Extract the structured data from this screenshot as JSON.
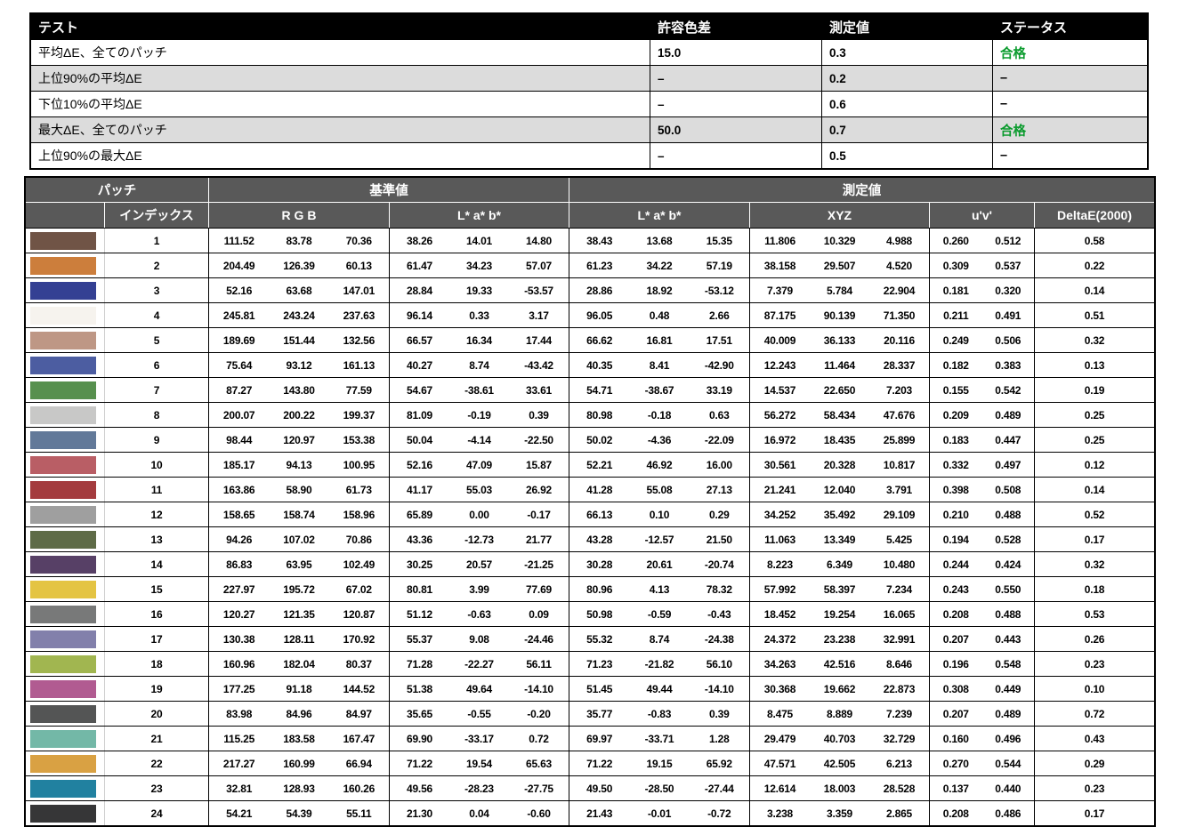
{
  "colors": {
    "pass_green": "#0a9b2d",
    "header_gray": "#595959",
    "alt_row_gray": "#dcdcdc",
    "table_border": "#000000"
  },
  "summary_table": {
    "columns": {
      "test": "テスト",
      "tolerance": "許容色差",
      "measured": "測定値",
      "status": "ステータス"
    },
    "rows": [
      {
        "test": "平均ΔE、全てのパッチ",
        "tolerance": "15.0",
        "measured": "0.3",
        "status": "合格"
      },
      {
        "test": "上位90%の平均ΔE",
        "tolerance": "–",
        "measured": "0.2",
        "status": "–"
      },
      {
        "test": "下位10%の平均ΔE",
        "tolerance": "–",
        "measured": "0.6",
        "status": "–"
      },
      {
        "test": "最大ΔE、全てのパッチ",
        "tolerance": "50.0",
        "measured": "0.7",
        "status": "合格"
      },
      {
        "test": "上位90%の最大ΔE",
        "tolerance": "–",
        "measured": "0.5",
        "status": "–"
      }
    ]
  },
  "patch_table": {
    "group_headers": {
      "patch": "パッチ",
      "reference": "基準値",
      "measured": "測定値"
    },
    "sub_headers": {
      "index": "インデックス",
      "rgb": "R G B",
      "lab_ref": "L* a* b*",
      "lab_meas": "L* a* b*",
      "xyz": "XYZ",
      "uv": "u'v'",
      "delta_e": "DeltaE(2000)"
    },
    "rows": [
      {
        "index": "1",
        "swatch": "#705446",
        "rgb": [
          "111.52",
          "83.78",
          "70.36"
        ],
        "lab_ref": [
          "38.26",
          "14.01",
          "14.80"
        ],
        "lab_meas": [
          "38.43",
          "13.68",
          "15.35"
        ],
        "xyz": [
          "11.806",
          "10.329",
          "4.988"
        ],
        "uv": [
          "0.260",
          "0.512"
        ],
        "delta_e": "0.58"
      },
      {
        "index": "2",
        "swatch": "#cc7e3c",
        "rgb": [
          "204.49",
          "126.39",
          "60.13"
        ],
        "lab_ref": [
          "61.47",
          "34.23",
          "57.07"
        ],
        "lab_meas": [
          "61.23",
          "34.22",
          "57.19"
        ],
        "xyz": [
          "38.158",
          "29.507",
          "4.520"
        ],
        "uv": [
          "0.309",
          "0.537"
        ],
        "delta_e": "0.22"
      },
      {
        "index": "3",
        "swatch": "#344093",
        "rgb": [
          "52.16",
          "63.68",
          "147.01"
        ],
        "lab_ref": [
          "28.84",
          "19.33",
          "-53.57"
        ],
        "lab_meas": [
          "28.86",
          "18.92",
          "-53.12"
        ],
        "xyz": [
          "7.379",
          "5.784",
          "22.904"
        ],
        "uv": [
          "0.181",
          "0.320"
        ],
        "delta_e": "0.14"
      },
      {
        "index": "4",
        "swatch": "#f6f3ee",
        "rgb": [
          "245.81",
          "243.24",
          "237.63"
        ],
        "lab_ref": [
          "96.14",
          "0.33",
          "3.17"
        ],
        "lab_meas": [
          "96.05",
          "0.48",
          "2.66"
        ],
        "xyz": [
          "87.175",
          "90.139",
          "71.350"
        ],
        "uv": [
          "0.211",
          "0.491"
        ],
        "delta_e": "0.51"
      },
      {
        "index": "5",
        "swatch": "#be9785",
        "rgb": [
          "189.69",
          "151.44",
          "132.56"
        ],
        "lab_ref": [
          "66.57",
          "16.34",
          "17.44"
        ],
        "lab_meas": [
          "66.62",
          "16.81",
          "17.51"
        ],
        "xyz": [
          "40.009",
          "36.133",
          "20.116"
        ],
        "uv": [
          "0.249",
          "0.506"
        ],
        "delta_e": "0.32"
      },
      {
        "index": "6",
        "swatch": "#4c5da1",
        "rgb": [
          "75.64",
          "93.12",
          "161.13"
        ],
        "lab_ref": [
          "40.27",
          "8.74",
          "-43.42"
        ],
        "lab_meas": [
          "40.35",
          "8.41",
          "-42.90"
        ],
        "xyz": [
          "12.243",
          "11.464",
          "28.337"
        ],
        "uv": [
          "0.182",
          "0.383"
        ],
        "delta_e": "0.13"
      },
      {
        "index": "7",
        "swatch": "#57904e",
        "rgb": [
          "87.27",
          "143.80",
          "77.59"
        ],
        "lab_ref": [
          "54.67",
          "-38.61",
          "33.61"
        ],
        "lab_meas": [
          "54.71",
          "-38.67",
          "33.19"
        ],
        "xyz": [
          "14.537",
          "22.650",
          "7.203"
        ],
        "uv": [
          "0.155",
          "0.542"
        ],
        "delta_e": "0.19"
      },
      {
        "index": "8",
        "swatch": "#c8c8c7",
        "rgb": [
          "200.07",
          "200.22",
          "199.37"
        ],
        "lab_ref": [
          "81.09",
          "-0.19",
          "0.39"
        ],
        "lab_meas": [
          "80.98",
          "-0.18",
          "0.63"
        ],
        "xyz": [
          "56.272",
          "58.434",
          "47.676"
        ],
        "uv": [
          "0.209",
          "0.489"
        ],
        "delta_e": "0.25"
      },
      {
        "index": "9",
        "swatch": "#627999",
        "rgb": [
          "98.44",
          "120.97",
          "153.38"
        ],
        "lab_ref": [
          "50.04",
          "-4.14",
          "-22.50"
        ],
        "lab_meas": [
          "50.02",
          "-4.36",
          "-22.09"
        ],
        "xyz": [
          "16.972",
          "18.435",
          "25.899"
        ],
        "uv": [
          "0.183",
          "0.447"
        ],
        "delta_e": "0.25"
      },
      {
        "index": "10",
        "swatch": "#b95e65",
        "rgb": [
          "185.17",
          "94.13",
          "100.95"
        ],
        "lab_ref": [
          "52.16",
          "47.09",
          "15.87"
        ],
        "lab_meas": [
          "52.21",
          "46.92",
          "16.00"
        ],
        "xyz": [
          "30.561",
          "20.328",
          "10.817"
        ],
        "uv": [
          "0.332",
          "0.497"
        ],
        "delta_e": "0.12"
      },
      {
        "index": "11",
        "swatch": "#a43b3e",
        "rgb": [
          "163.86",
          "58.90",
          "61.73"
        ],
        "lab_ref": [
          "41.17",
          "55.03",
          "26.92"
        ],
        "lab_meas": [
          "41.28",
          "55.08",
          "27.13"
        ],
        "xyz": [
          "21.241",
          "12.040",
          "3.791"
        ],
        "uv": [
          "0.398",
          "0.508"
        ],
        "delta_e": "0.14"
      },
      {
        "index": "12",
        "swatch": "#9f9f9f",
        "rgb": [
          "158.65",
          "158.74",
          "158.96"
        ],
        "lab_ref": [
          "65.89",
          "0.00",
          "-0.17"
        ],
        "lab_meas": [
          "66.13",
          "0.10",
          "0.29"
        ],
        "xyz": [
          "34.252",
          "35.492",
          "29.109"
        ],
        "uv": [
          "0.210",
          "0.488"
        ],
        "delta_e": "0.52"
      },
      {
        "index": "13",
        "swatch": "#5e6b47",
        "rgb": [
          "94.26",
          "107.02",
          "70.86"
        ],
        "lab_ref": [
          "43.36",
          "-12.73",
          "21.77"
        ],
        "lab_meas": [
          "43.28",
          "-12.57",
          "21.50"
        ],
        "xyz": [
          "11.063",
          "13.349",
          "5.425"
        ],
        "uv": [
          "0.194",
          "0.528"
        ],
        "delta_e": "0.17"
      },
      {
        "index": "14",
        "swatch": "#574066",
        "rgb": [
          "86.83",
          "63.95",
          "102.49"
        ],
        "lab_ref": [
          "30.25",
          "20.57",
          "-21.25"
        ],
        "lab_meas": [
          "30.28",
          "20.61",
          "-20.74"
        ],
        "xyz": [
          "8.223",
          "6.349",
          "10.480"
        ],
        "uv": [
          "0.244",
          "0.424"
        ],
        "delta_e": "0.32"
      },
      {
        "index": "15",
        "swatch": "#e4c443",
        "rgb": [
          "227.97",
          "195.72",
          "67.02"
        ],
        "lab_ref": [
          "80.81",
          "3.99",
          "77.69"
        ],
        "lab_meas": [
          "80.96",
          "4.13",
          "78.32"
        ],
        "xyz": [
          "57.992",
          "58.397",
          "7.234"
        ],
        "uv": [
          "0.243",
          "0.550"
        ],
        "delta_e": "0.18"
      },
      {
        "index": "16",
        "swatch": "#787979",
        "rgb": [
          "120.27",
          "121.35",
          "120.87"
        ],
        "lab_ref": [
          "51.12",
          "-0.63",
          "0.09"
        ],
        "lab_meas": [
          "50.98",
          "-0.59",
          "-0.43"
        ],
        "xyz": [
          "18.452",
          "19.254",
          "16.065"
        ],
        "uv": [
          "0.208",
          "0.488"
        ],
        "delta_e": "0.53"
      },
      {
        "index": "17",
        "swatch": "#8280ab",
        "rgb": [
          "130.38",
          "128.11",
          "170.92"
        ],
        "lab_ref": [
          "55.37",
          "9.08",
          "-24.46"
        ],
        "lab_meas": [
          "55.32",
          "8.74",
          "-24.38"
        ],
        "xyz": [
          "24.372",
          "23.238",
          "32.991"
        ],
        "uv": [
          "0.207",
          "0.443"
        ],
        "delta_e": "0.26"
      },
      {
        "index": "18",
        "swatch": "#a1b650",
        "rgb": [
          "160.96",
          "182.04",
          "80.37"
        ],
        "lab_ref": [
          "71.28",
          "-22.27",
          "56.11"
        ],
        "lab_meas": [
          "71.23",
          "-21.82",
          "56.10"
        ],
        "xyz": [
          "34.263",
          "42.516",
          "8.646"
        ],
        "uv": [
          "0.196",
          "0.548"
        ],
        "delta_e": "0.23"
      },
      {
        "index": "19",
        "swatch": "#b15b91",
        "rgb": [
          "177.25",
          "91.18",
          "144.52"
        ],
        "lab_ref": [
          "51.38",
          "49.64",
          "-14.10"
        ],
        "lab_meas": [
          "51.45",
          "49.44",
          "-14.10"
        ],
        "xyz": [
          "30.368",
          "19.662",
          "22.873"
        ],
        "uv": [
          "0.308",
          "0.449"
        ],
        "delta_e": "0.10"
      },
      {
        "index": "20",
        "swatch": "#545555",
        "rgb": [
          "83.98",
          "84.96",
          "84.97"
        ],
        "lab_ref": [
          "35.65",
          "-0.55",
          "-0.20"
        ],
        "lab_meas": [
          "35.77",
          "-0.83",
          "0.39"
        ],
        "xyz": [
          "8.475",
          "8.889",
          "7.239"
        ],
        "uv": [
          "0.207",
          "0.489"
        ],
        "delta_e": "0.72"
      },
      {
        "index": "21",
        "swatch": "#73b8a7",
        "rgb": [
          "115.25",
          "183.58",
          "167.47"
        ],
        "lab_ref": [
          "69.90",
          "-33.17",
          "0.72"
        ],
        "lab_meas": [
          "69.97",
          "-33.71",
          "1.28"
        ],
        "xyz": [
          "29.479",
          "40.703",
          "32.729"
        ],
        "uv": [
          "0.160",
          "0.496"
        ],
        "delta_e": "0.43"
      },
      {
        "index": "22",
        "swatch": "#d9a143",
        "rgb": [
          "217.27",
          "160.99",
          "66.94"
        ],
        "lab_ref": [
          "71.22",
          "19.54",
          "65.63"
        ],
        "lab_meas": [
          "71.22",
          "19.15",
          "65.92"
        ],
        "xyz": [
          "47.571",
          "42.505",
          "6.213"
        ],
        "uv": [
          "0.270",
          "0.544"
        ],
        "delta_e": "0.29"
      },
      {
        "index": "23",
        "swatch": "#2181a0",
        "rgb": [
          "32.81",
          "128.93",
          "160.26"
        ],
        "lab_ref": [
          "49.56",
          "-28.23",
          "-27.75"
        ],
        "lab_meas": [
          "49.50",
          "-28.50",
          "-27.44"
        ],
        "xyz": [
          "12.614",
          "18.003",
          "28.528"
        ],
        "uv": [
          "0.137",
          "0.440"
        ],
        "delta_e": "0.23"
      },
      {
        "index": "24",
        "swatch": "#363637",
        "rgb": [
          "54.21",
          "54.39",
          "55.11"
        ],
        "lab_ref": [
          "21.30",
          "0.04",
          "-0.60"
        ],
        "lab_meas": [
          "21.43",
          "-0.01",
          "-0.72"
        ],
        "xyz": [
          "3.238",
          "3.359",
          "2.865"
        ],
        "uv": [
          "0.208",
          "0.486"
        ],
        "delta_e": "0.17"
      }
    ]
  }
}
